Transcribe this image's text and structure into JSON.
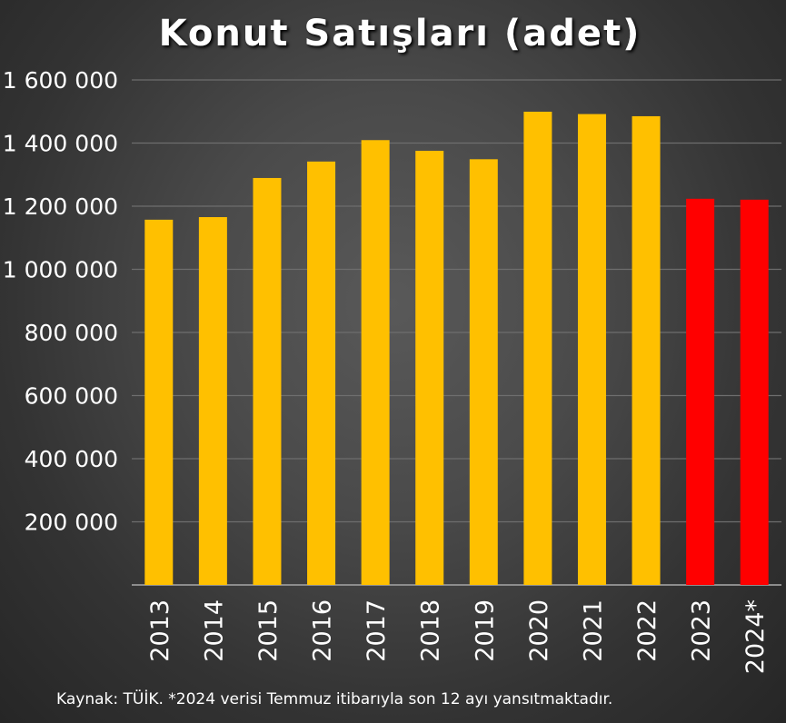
{
  "chart_data": {
    "type": "bar",
    "title": "Konut Satışları (adet)",
    "categories": [
      "2013",
      "2014",
      "2015",
      "2016",
      "2017",
      "2018",
      "2019",
      "2020",
      "2021",
      "2022",
      "2023",
      "2024*"
    ],
    "values": [
      1157190,
      1165381,
      1289320,
      1341453,
      1409314,
      1375398,
      1348729,
      1499316,
      1491856,
      1485022,
      1223498,
      1220658
    ],
    "highlight_color": "#ff0000",
    "bar_color": "#ffc000",
    "highlighted": [
      "2023",
      "2024*"
    ],
    "ylim": [
      0,
      1600000
    ],
    "yticks": [
      200000,
      400000,
      600000,
      800000,
      1000000,
      1200000,
      1400000,
      1600000
    ],
    "ytick_labels": [
      "200 000",
      "400 000",
      "600 000",
      "800 000",
      "1 000 000",
      "1 200 000",
      "1 400 000",
      "1 600 000"
    ],
    "grid": true,
    "xlabel": "",
    "ylabel": "",
    "source_note": "Kaynak: TÜİK. *2024 verisi Temmuz itibarıyla son 12 ayı yansıtmaktadır."
  }
}
